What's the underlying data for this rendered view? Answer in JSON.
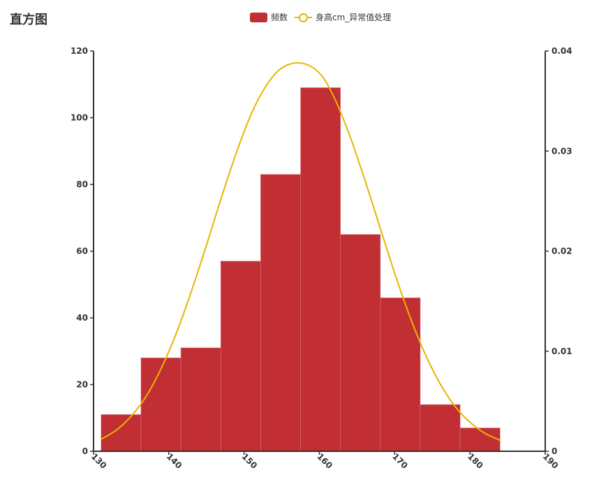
{
  "chart_data": {
    "type": "bar",
    "title": "直方图",
    "legend": [
      {
        "name": "频数",
        "kind": "bar",
        "color": "#c12e34"
      },
      {
        "name": "身高cm_异常值处理",
        "kind": "line",
        "color": "#e6b600"
      }
    ],
    "x_axis": {
      "min": 130,
      "max": 190,
      "ticks": [
        130,
        140,
        150,
        160,
        170,
        180,
        190
      ]
    },
    "y_left": {
      "min": 0,
      "max": 120,
      "ticks": [
        0,
        20,
        40,
        60,
        80,
        100,
        120
      ]
    },
    "y_right": {
      "min": 0,
      "max": 0.04,
      "ticks": [
        "0",
        "0.01",
        "0.02",
        "0.03",
        "0.04"
      ]
    },
    "series": [
      {
        "name": "频数",
        "type": "bar",
        "bins": [
          {
            "x0": 131.0,
            "x1": 136.3,
            "value": 11
          },
          {
            "x0": 136.3,
            "x1": 141.6,
            "value": 28
          },
          {
            "x0": 141.6,
            "x1": 146.9,
            "value": 31
          },
          {
            "x0": 146.9,
            "x1": 152.2,
            "value": 57
          },
          {
            "x0": 152.2,
            "x1": 157.5,
            "value": 83
          },
          {
            "x0": 157.5,
            "x1": 162.8,
            "value": 109
          },
          {
            "x0": 162.8,
            "x1": 168.1,
            "value": 65
          },
          {
            "x0": 168.1,
            "x1": 173.4,
            "value": 46
          },
          {
            "x0": 173.4,
            "x1": 178.7,
            "value": 14
          },
          {
            "x0": 178.7,
            "x1": 184.0,
            "value": 7
          }
        ]
      },
      {
        "name": "身高cm_异常值处理",
        "type": "line",
        "axis": "right",
        "points": [
          [
            131.0,
            0.0012
          ],
          [
            133.0,
            0.0021
          ],
          [
            135.0,
            0.0035
          ],
          [
            137.0,
            0.0055
          ],
          [
            139.0,
            0.0083
          ],
          [
            141.0,
            0.0118
          ],
          [
            143.0,
            0.016
          ],
          [
            145.0,
            0.0206
          ],
          [
            147.0,
            0.0254
          ],
          [
            149.0,
            0.0299
          ],
          [
            151.0,
            0.0338
          ],
          [
            153.0,
            0.0366
          ],
          [
            155.0,
            0.0383
          ],
          [
            157.5,
            0.0388
          ],
          [
            160.0,
            0.0378
          ],
          [
            162.0,
            0.0353
          ],
          [
            164.0,
            0.0316
          ],
          [
            166.0,
            0.0272
          ],
          [
            168.0,
            0.0225
          ],
          [
            170.0,
            0.0178
          ],
          [
            172.0,
            0.0135
          ],
          [
            174.0,
            0.0098
          ],
          [
            176.0,
            0.0068
          ],
          [
            178.0,
            0.0045
          ],
          [
            180.0,
            0.0029
          ],
          [
            182.0,
            0.0018
          ],
          [
            184.0,
            0.0011
          ]
        ]
      }
    ]
  }
}
